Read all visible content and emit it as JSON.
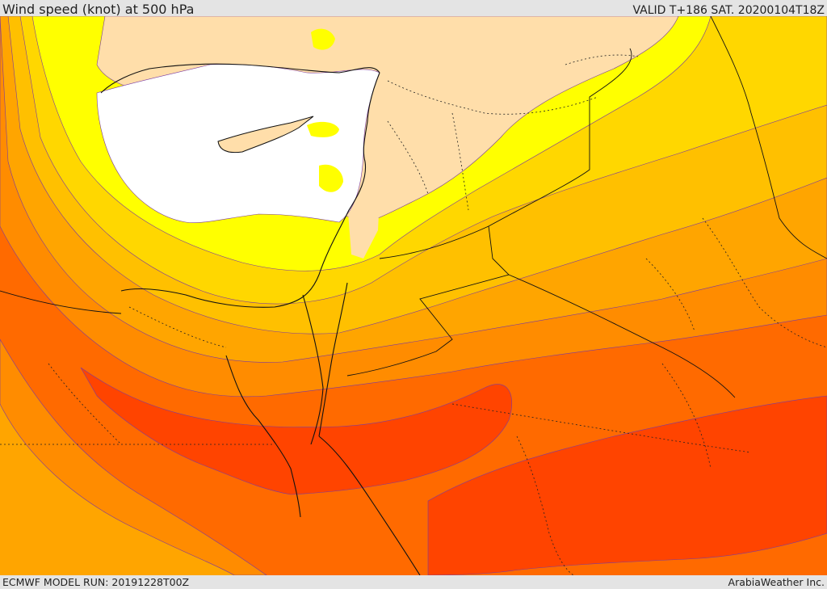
{
  "header": {
    "title": "Wind speed (knot) at 500 hPa",
    "valid": "VALID T+186 SAT. 20200104T18Z"
  },
  "footer": {
    "model_run": "ECMWF MODEL RUN: 20191228T00Z",
    "credit": "ArabiaWeather Inc."
  },
  "legend_colors": {
    "calm": "#ffffff",
    "light": "#ffdeaa",
    "yellow": "#ffff00",
    "gold": "#ffd700",
    "amber": "#ffc000",
    "orange": "#ffa500",
    "dark_orange": "#ff8c00",
    "red_orange": "#ff6a00",
    "deep_orange": "#ff5a00",
    "strongest": "#ff4400"
  }
}
